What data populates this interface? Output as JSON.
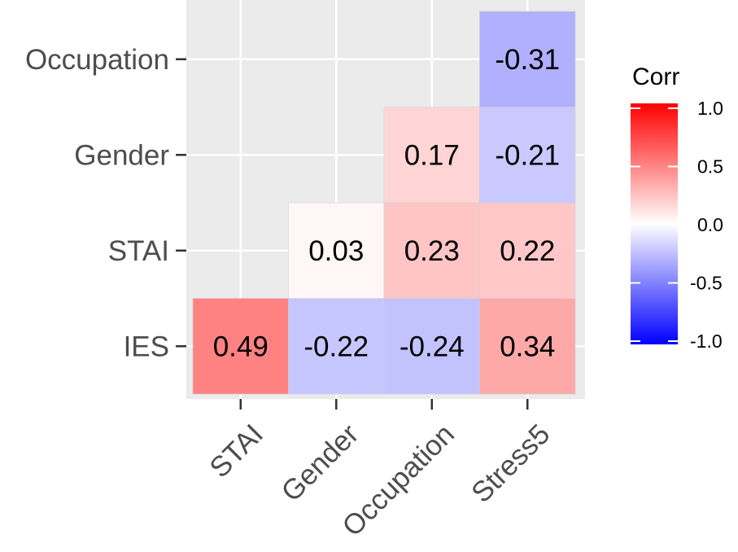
{
  "chart_data": {
    "type": "heatmap",
    "title": "",
    "xlabel": "",
    "ylabel": "",
    "x_categories": [
      "STAI",
      "Gender",
      "Occupation",
      "Stress5"
    ],
    "y_categories": [
      "IES",
      "STAI",
      "Gender",
      "Occupation"
    ],
    "cells": [
      {
        "x": "STAI",
        "y": "IES",
        "value": 0.49,
        "label": "0.49"
      },
      {
        "x": "Gender",
        "y": "IES",
        "value": -0.22,
        "label": "-0.22"
      },
      {
        "x": "Occupation",
        "y": "IES",
        "value": -0.24,
        "label": "-0.24"
      },
      {
        "x": "Stress5",
        "y": "IES",
        "value": 0.34,
        "label": "0.34"
      },
      {
        "x": "Gender",
        "y": "STAI",
        "value": 0.03,
        "label": "0.03"
      },
      {
        "x": "Occupation",
        "y": "STAI",
        "value": 0.23,
        "label": "0.23"
      },
      {
        "x": "Stress5",
        "y": "STAI",
        "value": 0.22,
        "label": "0.22"
      },
      {
        "x": "Occupation",
        "y": "Gender",
        "value": 0.17,
        "label": "0.17"
      },
      {
        "x": "Stress5",
        "y": "Gender",
        "value": -0.21,
        "label": "-0.21"
      },
      {
        "x": "Stress5",
        "y": "Occupation",
        "value": -0.31,
        "label": "-0.31"
      }
    ],
    "legend": {
      "title": "Corr",
      "range": [
        -1.0,
        1.0
      ],
      "ticks": [
        {
          "value": 1.0,
          "label": "1.0"
        },
        {
          "value": 0.5,
          "label": "0.5"
        },
        {
          "value": 0.0,
          "label": "0.0"
        },
        {
          "value": -0.5,
          "label": "-0.5"
        },
        {
          "value": -1.0,
          "label": "-1.0"
        }
      ],
      "placement": "right"
    },
    "colors": {
      "low": "#0000ff",
      "mid": "#ffffff",
      "high": "#ff0000",
      "panel_background": "#ebebeb",
      "grid": "#ffffff",
      "tick_text": "#4d4d4d",
      "cell_text": "#000000"
    },
    "grid": true
  }
}
